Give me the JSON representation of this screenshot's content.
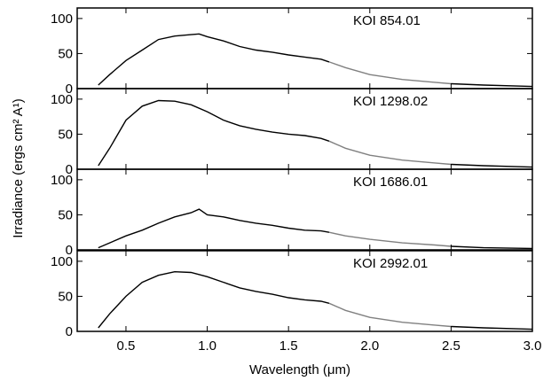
{
  "chart_data": {
    "type": "line",
    "xlabel": "Wavelength (μm)",
    "ylabel": "Irradiance (ergs cm² A¹)",
    "xlim": [
      0.2,
      3.0
    ],
    "xticks": [
      0.5,
      1.0,
      1.5,
      2.0,
      2.5,
      3.0
    ],
    "xtick_labels": [
      "0.5",
      "1.0",
      "1.5",
      "2.0",
      "2.5",
      "3.0"
    ],
    "yticks": [
      0,
      50,
      100
    ],
    "ytick_labels": [
      "0",
      "50",
      "100"
    ],
    "grid": false,
    "panels": [
      {
        "label": "KOI  854.01",
        "ylim": [
          0,
          115
        ],
        "series": [
          {
            "color": "#000000",
            "x": [
              0.33,
              0.4,
              0.5,
              0.6,
              0.7,
              0.8,
              0.9,
              0.95,
              1.0,
              1.1,
              1.2,
              1.3,
              1.4,
              1.5,
              1.6,
              1.7,
              1.75
            ],
            "y": [
              5,
              20,
              40,
              55,
              70,
              75,
              77,
              78,
              74,
              68,
              60,
              55,
              52,
              48,
              45,
              42,
              38
            ]
          },
          {
            "color": "#808080",
            "x": [
              1.75,
              1.85,
              2.0,
              2.2,
              2.4,
              2.5
            ],
            "y": [
              38,
              30,
              20,
              13,
              9,
              7
            ]
          },
          {
            "color": "#000000",
            "x": [
              2.5,
              2.7,
              3.0
            ],
            "y": [
              7,
              5,
              3
            ]
          }
        ]
      },
      {
        "label": "KOI  1298.02",
        "ylim": [
          0,
          115
        ],
        "series": [
          {
            "color": "#000000",
            "x": [
              0.33,
              0.4,
              0.5,
              0.6,
              0.7,
              0.8,
              0.9,
              1.0,
              1.1,
              1.2,
              1.3,
              1.4,
              1.5,
              1.6,
              1.7,
              1.75
            ],
            "y": [
              5,
              30,
              70,
              90,
              98,
              97,
              92,
              82,
              70,
              62,
              57,
              53,
              50,
              48,
              44,
              40
            ]
          },
          {
            "color": "#808080",
            "x": [
              1.75,
              1.85,
              2.0,
              2.2,
              2.4,
              2.5
            ],
            "y": [
              40,
              30,
              20,
              13,
              9,
              7
            ]
          },
          {
            "color": "#000000",
            "x": [
              2.5,
              2.7,
              3.0
            ],
            "y": [
              7,
              5,
              3
            ]
          }
        ]
      },
      {
        "label": "KOI  1686.01",
        "ylim": [
          0,
          115
        ],
        "series": [
          {
            "color": "#000000",
            "x": [
              0.33,
              0.4,
              0.5,
              0.6,
              0.7,
              0.8,
              0.9,
              0.95,
              1.0,
              1.1,
              1.2,
              1.3,
              1.4,
              1.5,
              1.6,
              1.7,
              1.75
            ],
            "y": [
              3,
              10,
              20,
              28,
              38,
              47,
              53,
              58,
              50,
              47,
              42,
              38,
              35,
              31,
              28,
              27,
              25
            ]
          },
          {
            "color": "#808080",
            "x": [
              1.75,
              1.85,
              2.0,
              2.2,
              2.4,
              2.5
            ],
            "y": [
              25,
              20,
              15,
              10,
              7,
              5
            ]
          },
          {
            "color": "#000000",
            "x": [
              2.5,
              2.7,
              3.0
            ],
            "y": [
              5,
              3,
              2
            ]
          }
        ]
      },
      {
        "label": "KOI  2992.01",
        "ylim": [
          0,
          115
        ],
        "series": [
          {
            "color": "#000000",
            "x": [
              0.33,
              0.4,
              0.5,
              0.6,
              0.7,
              0.8,
              0.9,
              1.0,
              1.1,
              1.2,
              1.3,
              1.4,
              1.5,
              1.6,
              1.7,
              1.75
            ],
            "y": [
              5,
              25,
              50,
              70,
              80,
              85,
              84,
              78,
              70,
              62,
              57,
              53,
              48,
              45,
              43,
              40
            ]
          },
          {
            "color": "#808080",
            "x": [
              1.75,
              1.85,
              2.0,
              2.2,
              2.4,
              2.5
            ],
            "y": [
              40,
              30,
              20,
              13,
              9,
              7
            ]
          },
          {
            "color": "#000000",
            "x": [
              2.5,
              2.7,
              3.0
            ],
            "y": [
              7,
              5,
              3
            ]
          }
        ]
      }
    ]
  }
}
